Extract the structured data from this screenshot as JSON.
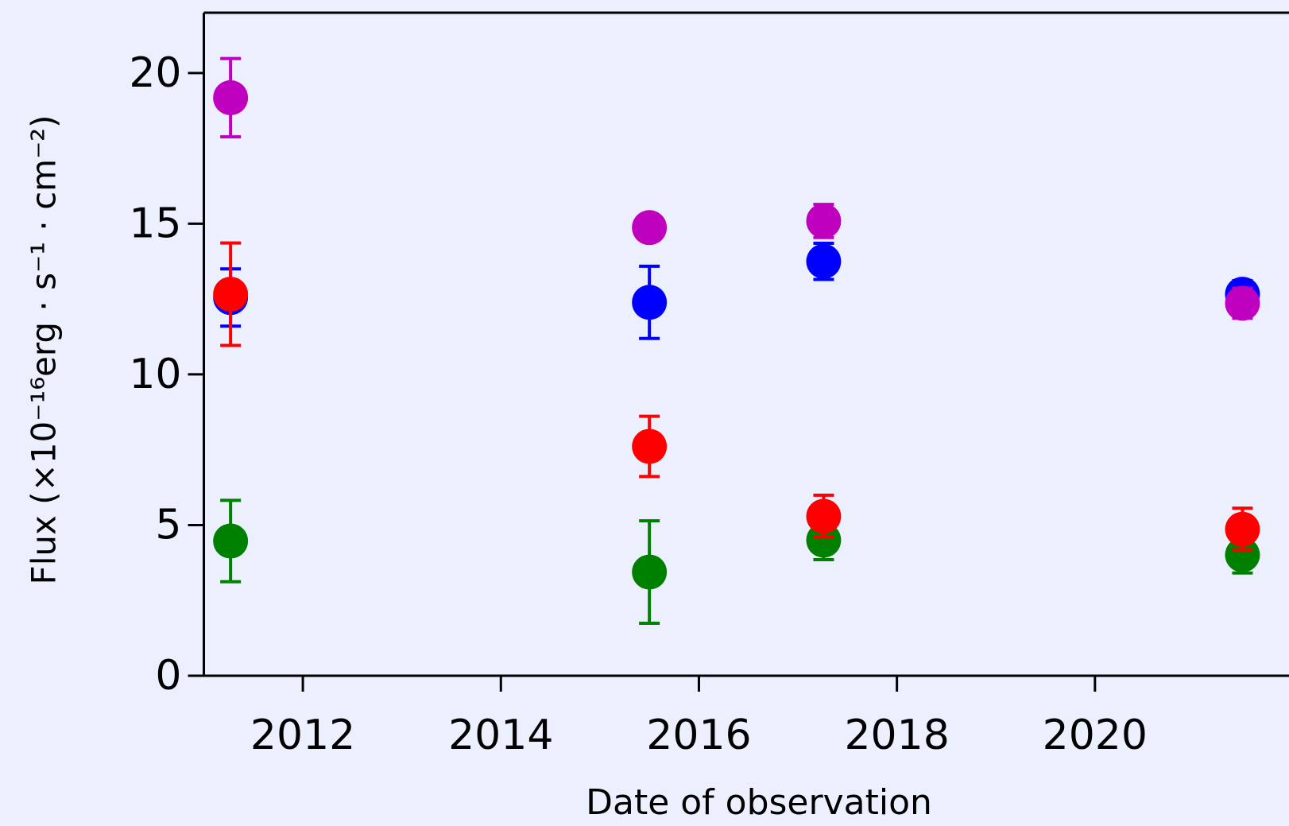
{
  "chart_data": {
    "type": "scatter",
    "x_label": "Date of observation",
    "y_label": "Flux (×10⁻¹⁶erg · s⁻¹ · cm⁻²)",
    "x": [
      2011.27,
      2015.5,
      2017.26,
      2021.49
    ],
    "series": [
      {
        "color": "#0000ff",
        "values": [
          12.55,
          12.39,
          13.75,
          12.66
        ],
        "errors": [
          0.95,
          1.2,
          0.6,
          0.45
        ]
      },
      {
        "color": "#008000",
        "values": [
          4.47,
          3.44,
          4.5,
          4.01
        ],
        "errors": [
          1.35,
          1.7,
          0.65,
          0.6
        ]
      },
      {
        "color": "#ff0000",
        "values": [
          12.66,
          7.61,
          5.29,
          4.86
        ],
        "errors": [
          1.7,
          1.0,
          0.7,
          0.7
        ]
      },
      {
        "color": "#bf00bf",
        "values": [
          19.18,
          14.87,
          15.09,
          12.36
        ],
        "errors": [
          1.3,
          0.3,
          0.55,
          0.5
        ]
      }
    ],
    "xlim": [
      2011,
      2022
    ],
    "xticks": [
      2012,
      2014,
      2016,
      2018,
      2020
    ],
    "ylim": [
      0,
      22
    ],
    "yticks": [
      0,
      5,
      10,
      15,
      20
    ],
    "grid": false
  }
}
